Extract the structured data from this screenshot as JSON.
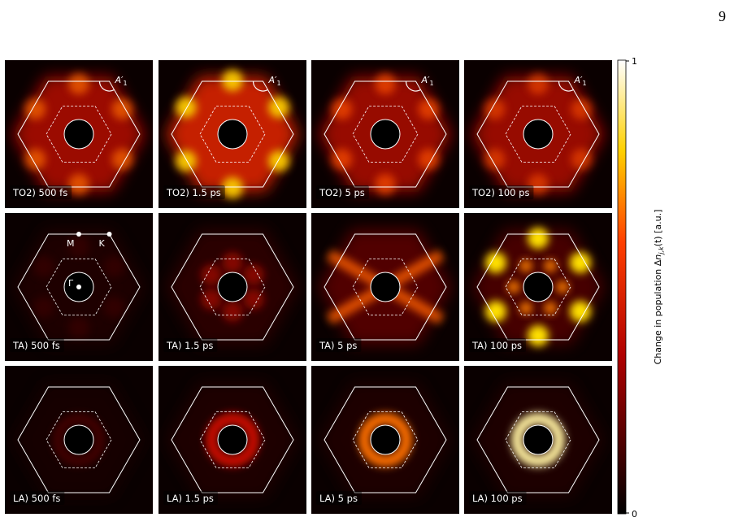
{
  "page_number": "9",
  "panels": [
    [
      "TO2) 500 fs",
      "TO2) 1.5 ps",
      "TO2) 5 ps",
      "TO2) 100 ps"
    ],
    [
      "TA) 500 fs",
      "TA) 1.5 ps",
      "TA) 5 ps",
      "TA) 100 ps"
    ],
    [
      "LA) 500 fs",
      "LA) 1.5 ps",
      "LA) 5 ps",
      "LA) 100 ps"
    ]
  ],
  "annotations": {
    "a1": {
      "main": "A′",
      "sub": "1"
    },
    "m": "M",
    "k": "K",
    "gamma": "Γ"
  },
  "colorbar": {
    "label": {
      "pre": "Change in population Δ",
      "n": "n",
      "sub": "j,k",
      "post": "(t) [a.u.]"
    },
    "top": "1",
    "bottom": "0"
  }
}
